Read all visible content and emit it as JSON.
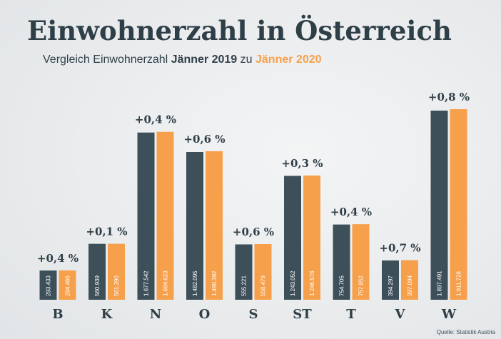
{
  "chart_data": {
    "type": "bar",
    "title": "Einwohnerzahl in Österreich",
    "subtitle_parts": [
      "Vergleich Einwohnerzahl",
      "zu"
    ],
    "categories": [
      "B",
      "K",
      "N",
      "O",
      "S",
      "ST",
      "T",
      "V",
      "W"
    ],
    "series": [
      {
        "name": "Jänner 2019",
        "color": "#3d505a",
        "values": [
          293433,
          560939,
          1677542,
          1482095,
          555221,
          1243052,
          754705,
          394297,
          1897491
        ],
        "value_labels": [
          "293.433",
          "560.939",
          "1.677.542",
          "1.482.095",
          "555.221",
          "1.243.052",
          "754.705",
          "394.297",
          "1.897.491"
        ]
      },
      {
        "name": "Jänner 2020",
        "color": "#f7a04c",
        "values": [
          294466,
          561390,
          1684623,
          1490392,
          558479,
          1246576,
          757852,
          397094,
          1911728
        ],
        "value_labels": [
          "294.466",
          "561.390",
          "1.684.623",
          "1.490.392",
          "558.479",
          "1.246.576",
          "757.852",
          "397.094",
          "1.911.728"
        ]
      }
    ],
    "change_labels": [
      "+0,4 %",
      "+0,1 %",
      "+0,4 %",
      "+0,6 %",
      "+0,6 %",
      "+0,3 %",
      "+0,4 %",
      "+0,7 %",
      "+0,8 %"
    ],
    "source": "Quelle: Statistik Austria"
  }
}
